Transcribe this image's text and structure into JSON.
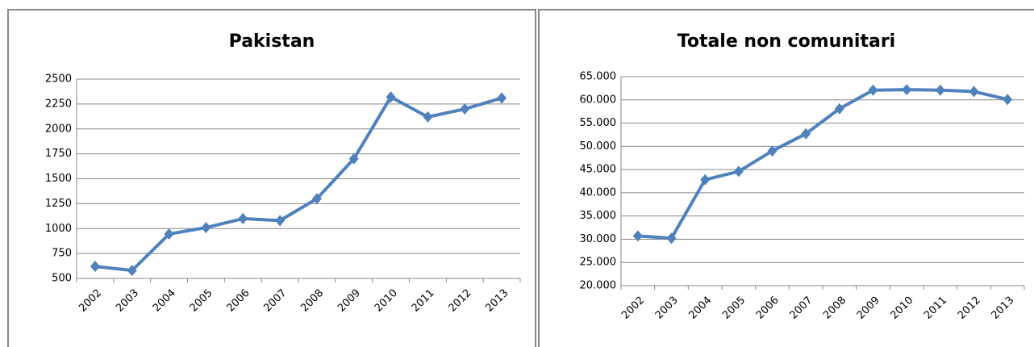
{
  "chart_data": [
    {
      "type": "line",
      "title": "Pakistan",
      "categories": [
        "2002",
        "2003",
        "2004",
        "2005",
        "2006",
        "2007",
        "2008",
        "2009",
        "2010",
        "2011",
        "2012",
        "2013"
      ],
      "series": [
        {
          "color": "#4f81bd",
          "values": [
            620,
            580,
            945,
            1010,
            1100,
            1080,
            1300,
            1700,
            2320,
            2120,
            2200,
            2310
          ]
        }
      ],
      "ylim": [
        500,
        2500
      ],
      "yticks": [
        500,
        750,
        1000,
        1250,
        1500,
        1750,
        2000,
        2250,
        2500
      ],
      "grid": true
    },
    {
      "type": "line",
      "title": "Totale non comunitari",
      "categories": [
        "2002",
        "2003",
        "2004",
        "2005",
        "2006",
        "2007",
        "2008",
        "2009",
        "2010",
        "2011",
        "2012",
        "2013"
      ],
      "series": [
        {
          "color": "#4f81bd",
          "values": [
            30700,
            30200,
            42800,
            44600,
            49000,
            52700,
            58100,
            62100,
            62200,
            62100,
            61800,
            60100
          ]
        }
      ],
      "ylim": [
        20000,
        65000
      ],
      "yticks": [
        {
          "value": 20000,
          "label": "20.000"
        },
        {
          "value": 25000,
          "label": "25.000"
        },
        {
          "value": 30000,
          "label": "30.000"
        },
        {
          "value": 35000,
          "label": "35.000"
        },
        {
          "value": 40000,
          "label": "40.000"
        },
        {
          "value": 45000,
          "label": "45.000"
        },
        {
          "value": 50000,
          "label": "50.000"
        },
        {
          "value": 55000,
          "label": "55.000"
        },
        {
          "value": 60000,
          "label": "60.000"
        },
        {
          "value": 65000,
          "label": "65.000"
        }
      ],
      "grid": true
    }
  ]
}
